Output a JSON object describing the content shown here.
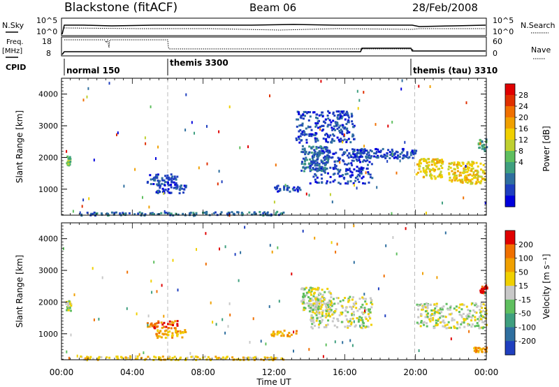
{
  "header": {
    "station": "Blackstone (fitACF)",
    "beam": "Beam 06",
    "date": "28/Feb/2008"
  },
  "top_panels": {
    "nsky_label": "N.Sky",
    "nsky_ticks": [
      "10^5",
      "10^0"
    ],
    "nsearch_label": "N.Search",
    "nsearch_ticks": [
      "10^5",
      "10^0"
    ],
    "freq_label_1": "Freq.",
    "freq_label_2": "[MHz]",
    "freq_ticks": [
      "18",
      "8"
    ],
    "nave_label": "Nave",
    "nave_ticks": [
      "60",
      "0"
    ],
    "cpid_label": "CPID",
    "cpid_modes": [
      {
        "name": "normal 150",
        "start_h": 0
      },
      {
        "name": "themis 3300",
        "start_h": 6
      },
      {
        "name": "themis (tau) 3310",
        "start_h": 19.95
      }
    ]
  },
  "chart_data": [
    {
      "type": "heatmap",
      "panel": "power",
      "ylabel": "Slant Range [km]",
      "xlabel": "Time UT",
      "x_ticks": [
        "00:00",
        "04:00",
        "08:00",
        "12:00",
        "16:00",
        "20:00",
        "00:00"
      ],
      "xlim_hours": [
        0,
        24
      ],
      "ylim_km": [
        180,
        4500
      ],
      "y_ticks": [
        1000,
        2000,
        3000,
        4000
      ],
      "colorbar_label": "Power [dB]",
      "colorbar_ticks": [
        "28",
        "24",
        "20",
        "16",
        "12",
        "8",
        "4"
      ],
      "colors": [
        "#0000dd",
        "#1f3fbf",
        "#2f6f9f",
        "#3f9f7f",
        "#5fbf5f",
        "#bfd030",
        "#f0d000",
        "#f0a000",
        "#f07000",
        "#e03000",
        "#e00000"
      ],
      "mode_boundaries_h": [
        6,
        19.95
      ],
      "regions": [
        {
          "t0": 0.25,
          "t1": 0.45,
          "r0": 1750,
          "r1": 2100,
          "level": 4
        },
        {
          "t0": 4.8,
          "t1": 6.5,
          "r0": 1150,
          "r1": 1500,
          "level": 1
        },
        {
          "t0": 5.3,
          "t1": 7.0,
          "r0": 900,
          "r1": 1200,
          "level": 1
        },
        {
          "t0": 8.0,
          "t1": 12.5,
          "r0": 200,
          "r1": 320,
          "level": 2
        },
        {
          "t0": 1.0,
          "t1": 8.0,
          "r0": 200,
          "r1": 300,
          "level": 2
        },
        {
          "t0": 14.0,
          "t1": 17.5,
          "r0": 1200,
          "r1": 2300,
          "level": 1
        },
        {
          "t0": 13.5,
          "t1": 15.0,
          "r0": 1600,
          "r1": 2400,
          "level": 2
        },
        {
          "t0": 13.2,
          "t1": 16.5,
          "r0": 2500,
          "r1": 3500,
          "level": 1
        },
        {
          "t0": 20.0,
          "t1": 21.5,
          "r0": 1350,
          "r1": 2000,
          "level": 6
        },
        {
          "t0": 21.8,
          "t1": 23.9,
          "r0": 1200,
          "r1": 1900,
          "level": 6
        },
        {
          "t0": 23.5,
          "t1": 24.0,
          "r0": 2200,
          "r1": 2600,
          "level": 3
        },
        {
          "t0": 12.0,
          "t1": 13.5,
          "r0": 950,
          "r1": 1150,
          "level": 1
        },
        {
          "t0": 16.0,
          "t1": 20.0,
          "r0": 2000,
          "r1": 2300,
          "level": 1
        }
      ]
    },
    {
      "type": "heatmap",
      "panel": "velocity",
      "ylabel": "Slant Range [km]",
      "xlabel": "Time UT",
      "x_ticks": [
        "00:00",
        "04:00",
        "08:00",
        "12:00",
        "16:00",
        "20:00",
        "00:00"
      ],
      "xlim_hours": [
        0,
        24
      ],
      "ylim_km": [
        180,
        4500
      ],
      "y_ticks": [
        1000,
        2000,
        3000,
        4000
      ],
      "colorbar_label": "Velocity [m s⁻¹]",
      "colorbar_ticks": [
        "200",
        "100",
        "50",
        "15",
        "-15",
        "-50",
        "-100",
        "-200"
      ],
      "colors": [
        "#1f3fbf",
        "#2f6f9f",
        "#3f9f7f",
        "#5fbf5f",
        "#c8c8c8",
        "#f0d000",
        "#f0a000",
        "#f07000",
        "#e00000"
      ],
      "mode_boundaries_h": [
        6,
        19.95
      ],
      "regions": [
        {
          "t0": 0.2,
          "t1": 0.5,
          "r0": 1750,
          "r1": 2100,
          "level": 4
        },
        {
          "t0": 4.8,
          "t1": 6.5,
          "r0": 1200,
          "r1": 1450,
          "level": 7
        },
        {
          "t0": 5.3,
          "t1": 7.0,
          "r0": 900,
          "r1": 1150,
          "level": 6
        },
        {
          "t0": 1.0,
          "t1": 12.5,
          "r0": 200,
          "r1": 320,
          "level": 5
        },
        {
          "t0": 14.0,
          "t1": 17.5,
          "r0": 1200,
          "r1": 2200,
          "level": 4
        },
        {
          "t0": 13.5,
          "t1": 15.2,
          "r0": 1700,
          "r1": 2500,
          "level": 4
        },
        {
          "t0": 20.0,
          "t1": 24.0,
          "r0": 1200,
          "r1": 2000,
          "level": 4
        },
        {
          "t0": 23.6,
          "t1": 24.0,
          "r0": 2300,
          "r1": 2600,
          "level": 8
        },
        {
          "t0": 11.8,
          "t1": 13.3,
          "r0": 950,
          "r1": 1150,
          "level": 6
        },
        {
          "t0": 23.2,
          "t1": 24.0,
          "r0": 450,
          "r1": 600,
          "level": 6
        }
      ]
    }
  ]
}
